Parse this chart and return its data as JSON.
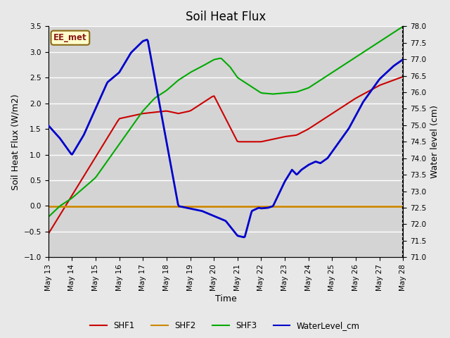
{
  "title": "Soil Heat Flux",
  "xlabel": "Time",
  "ylabel_left": "Soil Heat Flux (W/m2)",
  "ylabel_right": "Water level (cm)",
  "ylim_left": [
    -1.0,
    3.5
  ],
  "ylim_right": [
    71.0,
    78.0
  ],
  "fig_facecolor": "#e8e8e8",
  "ax_facecolor": "#d4d4d4",
  "grid_color": "#ffffff",
  "watermark": "EE_met",
  "SHF1_color": "#cc0000",
  "SHF2_color": "#cc8800",
  "SHF3_color": "#00aa00",
  "WL_color": "#0000cc",
  "legend_labels": [
    "SHF1",
    "SHF2",
    "SHF3",
    "WaterLevel_cm"
  ],
  "title_fontsize": 12,
  "axis_fontsize": 9,
  "tick_fontsize": 7.5
}
